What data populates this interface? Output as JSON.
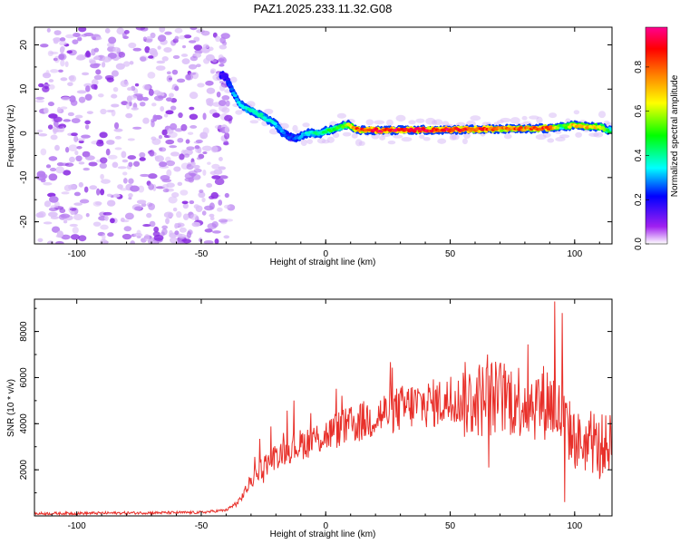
{
  "title": "PAZ1.2025.233.11.32.G08",
  "chart_data": [
    {
      "type": "heatmap",
      "name": "spectrogram",
      "xlabel": "Height of straight line (km)",
      "ylabel": "Frequency (Hz)",
      "xlim": [
        -117,
        115
      ],
      "ylim": [
        -25,
        24
      ],
      "xticks": [
        -100,
        -50,
        0,
        50,
        100
      ],
      "yticks": [
        -20,
        -10,
        0,
        10,
        20
      ],
      "noise_region_x": [
        -117,
        -40
      ],
      "ridge": {
        "x": [
          -40,
          -38,
          -35,
          -32,
          -29,
          -26,
          -23,
          -20,
          -17,
          -14,
          -11,
          -8,
          -5,
          -2,
          0,
          3,
          6,
          9,
          12,
          15,
          20,
          30,
          40,
          50,
          60,
          70,
          80,
          90,
          95,
          100,
          105,
          110,
          115
        ],
        "freq": [
          13,
          10,
          7,
          5.5,
          5,
          4,
          3,
          2,
          0,
          -1,
          -1,
          0,
          0,
          0,
          0.5,
          1,
          1.5,
          2,
          1,
          0.7,
          0.7,
          0.7,
          0.8,
          0.8,
          0.9,
          1,
          1,
          1.2,
          1.5,
          1.8,
          1.5,
          1.5,
          0.5
        ],
        "amplitude": [
          0.2,
          0.3,
          0.35,
          0.4,
          0.45,
          0.42,
          0.4,
          0.35,
          0.3,
          0.25,
          0.3,
          0.35,
          0.4,
          0.45,
          0.5,
          0.5,
          0.55,
          0.6,
          0.85,
          0.9,
          0.95,
          0.95,
          0.95,
          0.95,
          0.9,
          0.85,
          0.85,
          0.9,
          0.5,
          0.75,
          0.75,
          0.7,
          0.4
        ]
      },
      "colorbar": {
        "label": "Normalized spectral amplitude",
        "range": [
          0,
          0.98
        ],
        "ticks": [
          "0.0",
          "0.2",
          "0.4",
          "0.6",
          "0.8"
        ],
        "colors": [
          "#ffffff",
          "#a020f0",
          "#0000ff",
          "#00ffff",
          "#00ff00",
          "#ffff00",
          "#ff8000",
          "#ff0000",
          "#ff0090"
        ]
      }
    },
    {
      "type": "line",
      "name": "snr",
      "xlabel": "Height of straight line (km)",
      "ylabel": "SNR (10 * v/v)",
      "xlim": [
        -117,
        115
      ],
      "ylim": [
        0,
        9400
      ],
      "xticks": [
        -100,
        -50,
        0,
        50,
        100
      ],
      "yticks": [
        2000,
        4000,
        6000,
        8000
      ],
      "color": "#e8302a",
      "envelope": {
        "x": [
          -117,
          -50,
          -40,
          -35,
          -30,
          -25,
          -20,
          -15,
          -10,
          -5,
          0,
          5,
          10,
          15,
          20,
          25,
          30,
          35,
          40,
          45,
          50,
          55,
          60,
          65,
          70,
          75,
          80,
          85,
          90,
          95,
          100,
          105,
          110,
          115
        ],
        "y": [
          100,
          150,
          250,
          600,
          1500,
          2200,
          2600,
          2900,
          3100,
          3300,
          3500,
          3750,
          3900,
          4100,
          4300,
          4500,
          4650,
          4800,
          4850,
          4900,
          4950,
          5000,
          5050,
          5100,
          5150,
          5100,
          5000,
          4900,
          5000,
          4200,
          3300,
          3100,
          3000,
          3200
        ]
      },
      "peaks": [
        {
          "x": 65,
          "y": 7000
        },
        {
          "x": 92,
          "y": 9300
        },
        {
          "x": 95,
          "y": 8800
        },
        {
          "x": 65.5,
          "y": 2100
        },
        {
          "x": 96,
          "y": 600
        },
        {
          "x": 111,
          "y": 4400
        },
        {
          "x": 110,
          "y": 1600
        },
        {
          "x": -17,
          "y": 3600
        },
        {
          "x": 7,
          "y": 4600
        }
      ]
    }
  ]
}
